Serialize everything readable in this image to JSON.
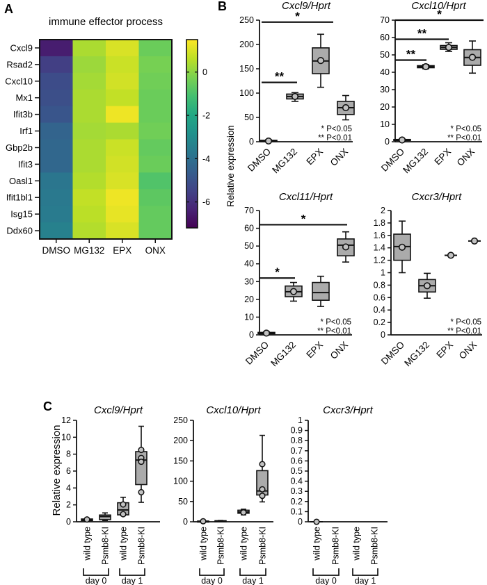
{
  "panels": {
    "a": "A",
    "b": "B",
    "c": "C"
  },
  "ylabels": {
    "b": "Relative expression",
    "c": "Relative expression"
  },
  "colors": {
    "box_fill": "#ababab",
    "marker_fill": "#c2c2c2",
    "axis": "#111111",
    "colormap": "viridis"
  },
  "chart_data": [
    {
      "id": "heatmap",
      "type": "heatmap",
      "title": "immune effector process",
      "rows": [
        "Cxcl9",
        "Rsad2",
        "Cxcl10",
        "Mx1",
        "Ifit3b",
        "Irf1",
        "Gbp2b",
        "Ifit3",
        "Oasl1",
        "Ifit1bl1",
        "Isg15",
        "Ddx60"
      ],
      "columns": [
        "DMSO",
        "MG132",
        "EPX",
        "ONX"
      ],
      "values": [
        [
          -6.5,
          0.4,
          1.0,
          -0.5
        ],
        [
          -5.6,
          0.2,
          0.8,
          -0.3
        ],
        [
          -5.2,
          0.3,
          0.9,
          -0.4
        ],
        [
          -5.1,
          0.4,
          0.7,
          -0.5
        ],
        [
          -4.9,
          0.4,
          1.3,
          -0.5
        ],
        [
          -4.4,
          0.3,
          0.4,
          -0.4
        ],
        [
          -4.3,
          0.4,
          0.8,
          -0.6
        ],
        [
          -4.3,
          0.4,
          0.9,
          -0.5
        ],
        [
          -3.8,
          0.5,
          1.0,
          -0.9
        ],
        [
          -3.7,
          0.7,
          1.3,
          -0.7
        ],
        [
          -3.6,
          0.6,
          1.2,
          -0.6
        ],
        [
          -3.4,
          0.5,
          1.0,
          -0.6
        ]
      ],
      "scale_domain": [
        -7.2,
        1.5
      ],
      "colorbar_ticks": [
        0,
        -2,
        -4,
        -6
      ],
      "legend_position": "right"
    },
    {
      "id": "b1",
      "type": "box",
      "title": "Cxcl9/Hprt",
      "categories": [
        "DMSO",
        "MG132",
        "EPX",
        "ONX"
      ],
      "ylim": [
        0,
        250
      ],
      "yticks": [
        0,
        50,
        100,
        150,
        200,
        250
      ],
      "boxes": [
        {
          "lo": 0,
          "q1": 0.5,
          "med": 1.5,
          "q3": 3,
          "hi": 4,
          "mean": 1.5
        },
        {
          "lo": 83,
          "q1": 88,
          "med": 93,
          "q3": 98,
          "hi": 101,
          "mean": 93
        },
        {
          "lo": 112,
          "q1": 140,
          "med": 166,
          "q3": 193,
          "hi": 221,
          "mean": 167
        },
        {
          "lo": 45,
          "q1": 56,
          "med": 70,
          "q3": 83,
          "hi": 95,
          "mean": 70
        }
      ],
      "brackets": [
        {
          "from": 0,
          "to": 1,
          "y": 122,
          "label": "**"
        },
        {
          "from": 0,
          "to": 2,
          "y": 246,
          "label": "*",
          "pad": 18
        }
      ],
      "note": [
        "* P<0.05",
        "** P<0.01"
      ]
    },
    {
      "id": "b2",
      "type": "box",
      "title": "Cxcl10/Hprt",
      "categories": [
        "DMSO",
        "MG132",
        "EPX",
        "ONX"
      ],
      "ylim": [
        0,
        70
      ],
      "yticks": [
        0,
        10,
        20,
        30,
        40,
        50,
        60,
        70
      ],
      "boxes": [
        {
          "lo": 0.6,
          "q1": 0.8,
          "med": 1,
          "q3": 1.3,
          "hi": 1.5,
          "mean": 1
        },
        {
          "lo": 42,
          "q1": 42.6,
          "med": 43.2,
          "q3": 43.8,
          "hi": 44.4,
          "mean": 43.2
        },
        {
          "lo": 52,
          "q1": 53.2,
          "med": 54.3,
          "q3": 55.4,
          "hi": 57,
          "mean": 54.3
        },
        {
          "lo": 39.5,
          "q1": 44,
          "med": 48.5,
          "q3": 53,
          "hi": 58,
          "mean": 48.6
        }
      ],
      "brackets": [
        {
          "from": 0,
          "to": 1,
          "y": 47,
          "label": "**",
          "pad": 1
        },
        {
          "from": 0,
          "to": 2,
          "y": 59,
          "label": "**",
          "pad": 0
        },
        {
          "from": 0,
          "to": 3,
          "y": 70,
          "label": "*",
          "pad": 16
        }
      ],
      "note": [
        "* P<0.05",
        "** P<0.01"
      ]
    },
    {
      "id": "b3",
      "type": "box",
      "title": "Cxcl11/Hprt",
      "categories": [
        "DMSO",
        "MG132",
        "EPX",
        "ONX"
      ],
      "ylim": [
        0,
        70
      ],
      "yticks": [
        0,
        10,
        20,
        30,
        40,
        50,
        60,
        70
      ],
      "boxes": [
        {
          "lo": 0.3,
          "q1": 0.6,
          "med": 1,
          "q3": 1.4,
          "hi": 1.7,
          "mean": 1
        },
        {
          "lo": 19,
          "q1": 21.5,
          "med": 24.3,
          "q3": 27.5,
          "hi": 29.5,
          "mean": 24.4
        },
        {
          "lo": 16,
          "q1": 19.5,
          "med": 23.8,
          "q3": 29.5,
          "hi": 33,
          "mean": null
        },
        {
          "lo": 41,
          "q1": 44.5,
          "med": 50.5,
          "q3": 54,
          "hi": 58,
          "mean": 49.5
        }
      ],
      "brackets": [
        {
          "from": 0,
          "to": 1,
          "y": 32,
          "label": "*",
          "pad": 2
        },
        {
          "from": 0,
          "to": 3,
          "y": 62,
          "label": "*",
          "pad": 2
        }
      ],
      "note": [
        "* P<0.05",
        "** P<0.01"
      ]
    },
    {
      "id": "b4",
      "type": "box",
      "title": "Cxcr3/Hprt",
      "categories": [
        "DMSO",
        "MG132",
        "EPX",
        "ONX"
      ],
      "ylim": [
        0,
        2
      ],
      "yticks": [
        0,
        0.2,
        0.4,
        0.6,
        0.8,
        1,
        1.2,
        1.4,
        1.6,
        1.8,
        2
      ],
      "boxes": [
        {
          "lo": 1.0,
          "q1": 1.2,
          "med": 1.42,
          "q3": 1.62,
          "hi": 1.83,
          "mean": 1.41
        },
        {
          "lo": 0.59,
          "q1": 0.69,
          "med": 0.79,
          "q3": 0.89,
          "hi": 0.99,
          "mean": 0.79
        },
        {
          "flat": 1.28,
          "mean": 1.28
        },
        {
          "flat": 1.51,
          "mean": 1.51
        }
      ],
      "brackets": [],
      "note": [
        "* P<0.05",
        "** P<0.01"
      ]
    },
    {
      "id": "c1",
      "type": "box",
      "title": "Cxcl9/Hprt",
      "categories": [
        "wild type",
        "Psmb8-KI",
        "wild type",
        "Psmb8-KI"
      ],
      "groups": [
        {
          "label": "day 0",
          "from": 0,
          "to": 1
        },
        {
          "label": "day 1",
          "from": 2,
          "to": 3
        }
      ],
      "ylim": [
        0,
        12
      ],
      "yticks": [
        0,
        2,
        4,
        6,
        8,
        10,
        12
      ],
      "boxes": [
        {
          "lo": 0.08,
          "q1": 0.13,
          "med": 0.22,
          "q3": 0.33,
          "hi": 0.4,
          "points": [
            0.27
          ]
        },
        {
          "lo": 0.15,
          "q1": 0.25,
          "med": 0.62,
          "q3": 0.8,
          "hi": 1.05,
          "points": []
        },
        {
          "lo": 0.72,
          "q1": 0.82,
          "med": 1.4,
          "q3": 2.25,
          "hi": 2.9,
          "points": [
            2.05,
            0.9
          ]
        },
        {
          "lo": 2.3,
          "q1": 4.4,
          "med": 7.3,
          "q3": 8.3,
          "hi": 11.3,
          "points": [
            8.5,
            7.55,
            7.1,
            3.5
          ]
        }
      ],
      "brackets": []
    },
    {
      "id": "c2",
      "type": "box",
      "title": "Cxcl10/Hprt",
      "categories": [
        "wild type",
        "Psmb8-KI",
        "wild type",
        "Psmb8-KI"
      ],
      "groups": [
        {
          "label": "day 0",
          "from": 0,
          "to": 1
        },
        {
          "label": "day 1",
          "from": 2,
          "to": 3
        }
      ],
      "ylim": [
        0,
        250
      ],
      "yticks": [
        0,
        50,
        100,
        150,
        200,
        250
      ],
      "boxes": [
        {
          "lo": 0.5,
          "q1": 0.8,
          "med": 1.2,
          "q3": 1.8,
          "hi": 2.2,
          "points": [
            1.3
          ]
        },
        {
          "lo": 1,
          "q1": 1.4,
          "med": 2,
          "q3": 2.6,
          "hi": 3.2,
          "points": []
        },
        {
          "lo": 17,
          "q1": 21,
          "med": 24,
          "q3": 28.5,
          "hi": 31,
          "points": [
            23
          ]
        },
        {
          "lo": 49,
          "q1": 66,
          "med": 76,
          "q3": 126,
          "hi": 213,
          "points": [
            142,
            80,
            64
          ]
        }
      ],
      "brackets": []
    },
    {
      "id": "c3",
      "type": "box",
      "title": "Cxcr3/Hprt",
      "categories": [
        "wild type",
        "Psmb8-KI",
        "wild type",
        "Psmb8-KI"
      ],
      "groups": [
        {
          "label": "day 0",
          "from": 0,
          "to": 1
        },
        {
          "label": "day 1",
          "from": 2,
          "to": 3
        }
      ],
      "ylim": [
        0,
        1
      ],
      "yticks": [
        0,
        0.1,
        0.2,
        0.3,
        0.4,
        0.5,
        0.6,
        0.7,
        0.8,
        0.9,
        1
      ],
      "boxes": [
        {
          "flat": 0,
          "points": [
            0
          ]
        },
        null,
        null,
        null
      ],
      "brackets": []
    }
  ]
}
